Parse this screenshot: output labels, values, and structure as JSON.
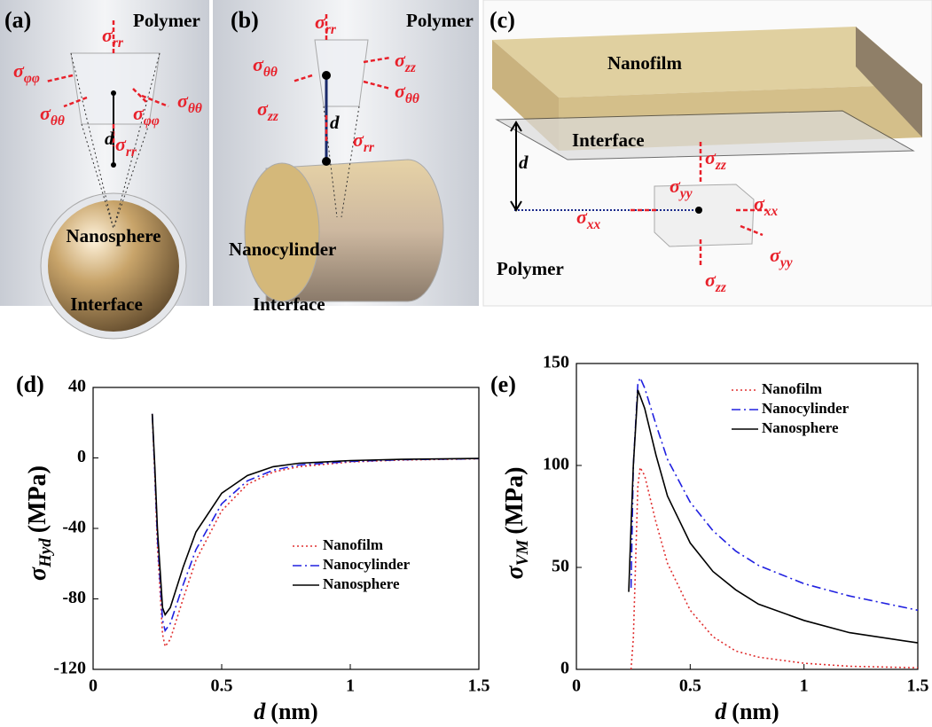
{
  "panels": [
    {
      "label": "(a)",
      "medium": "Polymer",
      "distance": "d",
      "particle": "Nanosphere",
      "interface": "Interface",
      "stresses": [
        {
          "symbol": "σ",
          "sub": "rr"
        },
        {
          "symbol": "σ",
          "sub": "φφ"
        },
        {
          "symbol": "σ",
          "sub": "θθ"
        },
        {
          "symbol": "σ",
          "sub": "φφ"
        },
        {
          "symbol": "σ",
          "sub": "θθ"
        },
        {
          "symbol": "σ",
          "sub": "rr"
        }
      ]
    },
    {
      "label": "(b)",
      "medium": "Polymer",
      "distance": "d",
      "particle": "Nanocylinder",
      "interface": "Interface",
      "stresses": [
        {
          "symbol": "σ",
          "sub": "rr"
        },
        {
          "symbol": "σ",
          "sub": "θθ"
        },
        {
          "symbol": "σ",
          "sub": "zz"
        },
        {
          "symbol": "σ",
          "sub": "θθ"
        },
        {
          "symbol": "σ",
          "sub": "zz"
        },
        {
          "symbol": "σ",
          "sub": "rr"
        }
      ]
    },
    {
      "label": "(c)",
      "medium": "Polymer",
      "distance": "d",
      "particle": "Nanofilm",
      "interface": "Interface",
      "stresses": [
        {
          "symbol": "σ",
          "sub": "zz"
        },
        {
          "symbol": "σ",
          "sub": "yy"
        },
        {
          "symbol": "σ",
          "sub": "xx"
        },
        {
          "symbol": "σ",
          "sub": "xx"
        },
        {
          "symbol": "σ",
          "sub": "yy"
        },
        {
          "symbol": "σ",
          "sub": "zz"
        }
      ]
    }
  ],
  "chart_data": [
    {
      "type": "line",
      "panel_label": "(d)",
      "xlabel": {
        "symbol": "d",
        "unit": "(nm)"
      },
      "ylabel": {
        "symbol": "σ",
        "sub": "Hyd",
        "unit": "(MPa)"
      },
      "x": [
        0.23,
        0.24,
        0.25,
        0.27,
        0.28,
        0.3,
        0.35,
        0.4,
        0.5,
        0.6,
        0.7,
        0.8,
        1.0,
        1.2,
        1.5
      ],
      "xlim": [
        0,
        1.5
      ],
      "xticks": [
        0,
        0.5,
        1,
        1.5
      ],
      "ylim": [
        -120,
        40
      ],
      "yticks": [
        -120,
        -80,
        -40,
        0,
        40
      ],
      "legend": "right",
      "series": [
        {
          "name": "Nanofilm",
          "color": "#e03030",
          "linestyle": "dotted",
          "values": [
            25,
            -10,
            -50,
            -100,
            -107,
            -103,
            -80,
            -58,
            -30,
            -15,
            -8,
            -5,
            -2.3,
            -1.2,
            -0.5
          ]
        },
        {
          "name": "Nanocylinder",
          "color": "#2020e0",
          "linestyle": "dashdot",
          "values": [
            25,
            -8,
            -45,
            -92,
            -98,
            -94,
            -72,
            -52,
            -26,
            -13,
            -7,
            -4,
            -2,
            -1,
            -0.4
          ]
        },
        {
          "name": "Nanosphere",
          "color": "#000000",
          "linestyle": "solid",
          "values": [
            25,
            -5,
            -40,
            -85,
            -89,
            -85,
            -62,
            -42,
            -20,
            -10,
            -5,
            -3,
            -1.5,
            -0.8,
            -0.3
          ]
        }
      ]
    },
    {
      "type": "line",
      "panel_label": "(e)",
      "xlabel": {
        "symbol": "d",
        "unit": "(nm)"
      },
      "ylabel": {
        "symbol": "σ",
        "sub": "VM",
        "unit": "(MPa)"
      },
      "x": [
        0.23,
        0.24,
        0.25,
        0.27,
        0.28,
        0.3,
        0.35,
        0.4,
        0.5,
        0.6,
        0.7,
        0.8,
        1.0,
        1.2,
        1.5
      ],
      "xlim": [
        0,
        1.5
      ],
      "xticks": [
        0,
        0.5,
        1,
        1.5
      ],
      "ylim": [
        0,
        150
      ],
      "yticks": [
        0,
        50,
        100,
        150
      ],
      "legend": "upper right",
      "series": [
        {
          "name": "Nanofilm",
          "color": "#e03030",
          "linestyle": "dotted",
          "values": [
            null,
            0,
            15,
            90,
            99,
            95,
            72,
            52,
            29,
            16,
            9,
            6,
            3,
            1.5,
            0.8
          ]
        },
        {
          "name": "Nanocylinder",
          "color": "#2020e0",
          "linestyle": "dashdot",
          "values": [
            null,
            40,
            100,
            140,
            143,
            138,
            120,
            103,
            82,
            68,
            58,
            51,
            42,
            36,
            29
          ]
        },
        {
          "name": "Nanosphere",
          "color": "#000000",
          "linestyle": "solid",
          "values": [
            38,
            70,
            100,
            137,
            134,
            128,
            105,
            85,
            62,
            48,
            39,
            32,
            24,
            18,
            13
          ]
        }
      ]
    }
  ]
}
